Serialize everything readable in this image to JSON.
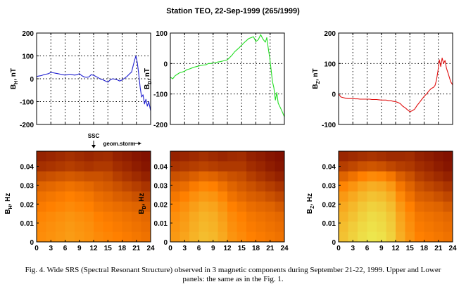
{
  "figure": {
    "title": "Station TEO, 22-Sep-1999 (265/1999)",
    "caption_line1": "Fig. 4. Wide SRS (Spectral Resonant Structure) observed in 3 magnetic components during September 21-22, 1999. Upper and Lower",
    "caption_line2": "panels: the same as in the Fig. 1.",
    "ssc_label": "SSC",
    "storm_label": "geom.storm",
    "ssc_time_hour": 12,
    "storm_start_hour": 14,
    "storm_end_hour": 22
  },
  "colors": {
    "bh_line": "#1f1fd0",
    "bd_line": "#22dd22",
    "bz_line": "#e01010",
    "spec_low": "#7a0a00",
    "spec_mid": "#ff8000",
    "spec_high": "#e8ff60"
  },
  "chart_data": [
    {
      "type": "line",
      "name": "bh-timeseries",
      "ylabel": "B_H, nT",
      "ylabel_main": "B",
      "ylabel_sub": "H",
      "ylabel_unit": ", nT",
      "xlim": [
        0,
        24
      ],
      "ylim": [
        -200,
        200
      ],
      "xticks": [
        0,
        3,
        6,
        9,
        12,
        15,
        18,
        21,
        24
      ],
      "yticks": [
        200,
        100,
        0,
        -100,
        -200
      ],
      "ytick_labels": [
        "200",
        "100",
        "0",
        "-100",
        "-200"
      ],
      "grid": true,
      "x": [
        0,
        0.5,
        1,
        1.5,
        2,
        2.5,
        3,
        3.5,
        4,
        4.5,
        5,
        5.5,
        6,
        6.5,
        7,
        7.5,
        8,
        8.5,
        9,
        9.5,
        10,
        10.5,
        11,
        11.5,
        12,
        12.5,
        13,
        13.5,
        14,
        14.5,
        15,
        15.5,
        16,
        16.5,
        17,
        17.5,
        18,
        18.5,
        19,
        19.5,
        20,
        20.3,
        20.6,
        20.9,
        21.2,
        21.5,
        21.8,
        22.1,
        22.4,
        22.7,
        23,
        23.3,
        23.6,
        24
      ],
      "y": [
        10,
        12,
        14,
        18,
        20,
        22,
        28,
        26,
        24,
        22,
        20,
        18,
        16,
        18,
        20,
        18,
        16,
        18,
        22,
        14,
        8,
        6,
        8,
        18,
        15,
        10,
        4,
        -2,
        -5,
        -10,
        -15,
        -5,
        0,
        -2,
        -5,
        -10,
        -5,
        2,
        10,
        20,
        30,
        55,
        80,
        100,
        70,
        20,
        -40,
        -80,
        -70,
        -110,
        -90,
        -120,
        -100,
        -140
      ]
    },
    {
      "type": "line",
      "name": "bd-timeseries",
      "ylabel": "B_D, nT",
      "ylabel_main": "B",
      "ylabel_sub": "D",
      "ylabel_unit": ", nT",
      "xlim": [
        0,
        24
      ],
      "ylim": [
        -200,
        100
      ],
      "xticks": [
        0,
        3,
        6,
        9,
        12,
        15,
        18,
        21,
        24
      ],
      "yticks": [
        100,
        0,
        -100,
        -200
      ],
      "ytick_labels": [
        "100",
        "0",
        "-100",
        "-200"
      ],
      "grid": true,
      "x": [
        0,
        0.5,
        1,
        1.5,
        2,
        2.5,
        3,
        3.5,
        4,
        4.5,
        5,
        5.5,
        6,
        6.5,
        7,
        7.5,
        8,
        8.5,
        9,
        9.5,
        10,
        10.5,
        11,
        11.5,
        12,
        12.5,
        13,
        13.5,
        14,
        14.5,
        15,
        15.5,
        16,
        16.5,
        17,
        17.5,
        18,
        18.5,
        19,
        19.5,
        20,
        20.3,
        20.6,
        20.9,
        21.2,
        21.5,
        21.8,
        22.1,
        22.4,
        22.7,
        23,
        23.3,
        23.6,
        24
      ],
      "y": [
        -45,
        -50,
        -40,
        -35,
        -30,
        -28,
        -25,
        -20,
        -18,
        -15,
        -12,
        -10,
        -8,
        -6,
        -5,
        -4,
        0,
        0,
        2,
        3,
        5,
        6,
        8,
        10,
        12,
        20,
        28,
        38,
        45,
        52,
        60,
        68,
        75,
        82,
        85,
        88,
        72,
        78,
        95,
        80,
        70,
        85,
        50,
        20,
        -20,
        -60,
        -80,
        -120,
        -95,
        -130,
        -140,
        -150,
        -160,
        -175
      ]
    },
    {
      "type": "line",
      "name": "bz-timeseries",
      "ylabel": "B_Z, nT",
      "ylabel_main": "B",
      "ylabel_sub": "Z",
      "ylabel_unit": ", nT",
      "xlim": [
        0,
        24
      ],
      "ylim": [
        -100,
        200
      ],
      "xticks": [
        0,
        3,
        6,
        9,
        12,
        15,
        18,
        21,
        24
      ],
      "yticks": [
        200,
        100,
        0,
        -100
      ],
      "ytick_labels": [
        "200",
        "100",
        "0",
        "-100"
      ],
      "grid": true,
      "x": [
        0,
        0.5,
        1,
        1.5,
        2,
        2.5,
        3,
        3.5,
        4,
        4.5,
        5,
        5.5,
        6,
        6.5,
        7,
        7.5,
        8,
        8.5,
        9,
        9.5,
        10,
        10.5,
        11,
        11.5,
        12,
        12.5,
        13,
        13.5,
        14,
        14.5,
        15,
        15.5,
        16,
        16.5,
        17,
        17.5,
        18,
        18.5,
        19,
        19.5,
        20,
        20.3,
        20.6,
        20.9,
        21.2,
        21.5,
        21.8,
        22.1,
        22.4,
        22.7,
        23,
        23.3,
        23.6,
        24
      ],
      "y": [
        0,
        -10,
        -12,
        -14,
        -15,
        -15,
        -15,
        -16,
        -16,
        -17,
        -17,
        -17,
        -17,
        -17,
        -18,
        -18,
        -18,
        -19,
        -20,
        -20,
        -20,
        -22,
        -22,
        -24,
        -25,
        -28,
        -32,
        -40,
        -45,
        -52,
        -58,
        -55,
        -50,
        -38,
        -28,
        -18,
        -8,
        0,
        10,
        18,
        22,
        28,
        45,
        75,
        112,
        90,
        118,
        100,
        110,
        85,
        70,
        55,
        40,
        30
      ]
    },
    {
      "type": "heatmap",
      "name": "bh-spectrogram",
      "ylabel": "B_H, Hz",
      "ylabel_main": "B",
      "ylabel_sub": "H",
      "ylabel_unit": ", Hz",
      "xlim": [
        0,
        24
      ],
      "ylim": [
        0,
        0.048
      ],
      "xticks": [
        0,
        3,
        6,
        9,
        12,
        15,
        18,
        21,
        24
      ],
      "xtick_labels": [
        "0",
        "3",
        "6",
        "9",
        "12",
        "15",
        "18",
        "21",
        "24"
      ],
      "yticks": [
        0,
        0.01,
        0.02,
        0.03,
        0.04
      ],
      "ytick_labels": [
        "0",
        "0.01",
        "0.02",
        "0.03",
        "0.04"
      ],
      "intensity": [
        [
          0.9,
          0.88,
          0.86,
          0.84,
          0.86,
          0.88,
          0.86,
          0.85,
          0.9,
          0.92,
          0.95,
          0.97
        ],
        [
          0.84,
          0.82,
          0.8,
          0.78,
          0.8,
          0.82,
          0.8,
          0.8,
          0.85,
          0.88,
          0.92,
          0.95
        ],
        [
          0.72,
          0.7,
          0.68,
          0.66,
          0.68,
          0.7,
          0.7,
          0.72,
          0.78,
          0.82,
          0.86,
          0.9
        ],
        [
          0.62,
          0.6,
          0.58,
          0.56,
          0.58,
          0.6,
          0.64,
          0.66,
          0.7,
          0.74,
          0.78,
          0.82
        ],
        [
          0.56,
          0.54,
          0.52,
          0.5,
          0.52,
          0.54,
          0.58,
          0.6,
          0.64,
          0.66,
          0.7,
          0.74
        ],
        [
          0.52,
          0.5,
          0.48,
          0.46,
          0.48,
          0.5,
          0.54,
          0.56,
          0.58,
          0.6,
          0.62,
          0.66
        ],
        [
          0.48,
          0.46,
          0.44,
          0.42,
          0.44,
          0.46,
          0.5,
          0.52,
          0.54,
          0.56,
          0.58,
          0.6
        ],
        [
          0.46,
          0.44,
          0.42,
          0.4,
          0.42,
          0.44,
          0.48,
          0.5,
          0.52,
          0.54,
          0.56,
          0.58
        ],
        [
          0.45,
          0.43,
          0.41,
          0.39,
          0.41,
          0.43,
          0.46,
          0.48,
          0.5,
          0.52,
          0.54,
          0.56
        ]
      ]
    },
    {
      "type": "heatmap",
      "name": "bd-spectrogram",
      "ylabel": "B_D, Hz",
      "ylabel_main": "B",
      "ylabel_sub": "D",
      "ylabel_unit": ", Hz",
      "xlim": [
        0,
        24
      ],
      "ylim": [
        0,
        0.048
      ],
      "xticks": [
        0,
        3,
        6,
        9,
        12,
        15,
        18,
        21,
        24
      ],
      "xtick_labels": [
        "0",
        "3",
        "6",
        "9",
        "12",
        "15",
        "18",
        "21",
        "24"
      ],
      "yticks": [
        0,
        0.01,
        0.02,
        0.03,
        0.04
      ],
      "ytick_labels": [
        "0",
        "0.01",
        "0.02",
        "0.03",
        "0.04"
      ],
      "intensity": [
        [
          0.9,
          0.88,
          0.86,
          0.84,
          0.86,
          0.88,
          0.86,
          0.85,
          0.9,
          0.92,
          0.95,
          0.97
        ],
        [
          0.82,
          0.8,
          0.78,
          0.76,
          0.78,
          0.8,
          0.8,
          0.8,
          0.85,
          0.88,
          0.92,
          0.95
        ],
        [
          0.7,
          0.68,
          0.64,
          0.6,
          0.62,
          0.66,
          0.7,
          0.72,
          0.78,
          0.82,
          0.86,
          0.9
        ],
        [
          0.6,
          0.58,
          0.52,
          0.48,
          0.5,
          0.56,
          0.62,
          0.66,
          0.7,
          0.74,
          0.78,
          0.82
        ],
        [
          0.54,
          0.5,
          0.44,
          0.4,
          0.42,
          0.48,
          0.56,
          0.6,
          0.64,
          0.66,
          0.7,
          0.74
        ],
        [
          0.48,
          0.44,
          0.38,
          0.34,
          0.36,
          0.42,
          0.5,
          0.54,
          0.58,
          0.6,
          0.62,
          0.66
        ],
        [
          0.44,
          0.4,
          0.34,
          0.3,
          0.32,
          0.38,
          0.46,
          0.5,
          0.54,
          0.56,
          0.58,
          0.6
        ],
        [
          0.42,
          0.38,
          0.32,
          0.28,
          0.3,
          0.36,
          0.44,
          0.48,
          0.52,
          0.54,
          0.56,
          0.58
        ],
        [
          0.4,
          0.36,
          0.3,
          0.26,
          0.28,
          0.34,
          0.42,
          0.46,
          0.5,
          0.52,
          0.54,
          0.56
        ]
      ]
    },
    {
      "type": "heatmap",
      "name": "bz-spectrogram",
      "ylabel": "B_Z, Hz",
      "ylabel_main": "B",
      "ylabel_sub": "Z",
      "ylabel_unit": ", Hz",
      "xlim": [
        0,
        24
      ],
      "ylim": [
        0,
        0.048
      ],
      "xticks": [
        0,
        3,
        6,
        9,
        12,
        15,
        18,
        21,
        24
      ],
      "xtick_labels": [
        "0",
        "3",
        "6",
        "9",
        "12",
        "15",
        "18",
        "21",
        "24"
      ],
      "yticks": [
        0,
        0.01,
        0.02,
        0.03,
        0.04
      ],
      "ytick_labels": [
        "0",
        "0.01",
        "0.02",
        "0.03",
        "0.04"
      ],
      "intensity": [
        [
          0.88,
          0.86,
          0.84,
          0.82,
          0.84,
          0.86,
          0.86,
          0.85,
          0.9,
          0.92,
          0.95,
          0.97
        ],
        [
          0.78,
          0.74,
          0.7,
          0.68,
          0.7,
          0.74,
          0.78,
          0.8,
          0.85,
          0.88,
          0.92,
          0.95
        ],
        [
          0.62,
          0.56,
          0.5,
          0.46,
          0.48,
          0.54,
          0.64,
          0.7,
          0.78,
          0.82,
          0.86,
          0.9
        ],
        [
          0.48,
          0.42,
          0.36,
          0.32,
          0.34,
          0.4,
          0.54,
          0.62,
          0.7,
          0.74,
          0.78,
          0.82
        ],
        [
          0.4,
          0.34,
          0.28,
          0.24,
          0.26,
          0.32,
          0.46,
          0.56,
          0.64,
          0.66,
          0.7,
          0.74
        ],
        [
          0.34,
          0.28,
          0.22,
          0.18,
          0.2,
          0.26,
          0.4,
          0.5,
          0.58,
          0.6,
          0.62,
          0.66
        ],
        [
          0.3,
          0.24,
          0.18,
          0.14,
          0.16,
          0.22,
          0.36,
          0.46,
          0.54,
          0.56,
          0.58,
          0.6
        ],
        [
          0.26,
          0.2,
          0.15,
          0.12,
          0.14,
          0.2,
          0.34,
          0.44,
          0.52,
          0.54,
          0.56,
          0.58
        ],
        [
          0.24,
          0.18,
          0.13,
          0.1,
          0.12,
          0.18,
          0.32,
          0.42,
          0.5,
          0.52,
          0.54,
          0.56
        ]
      ]
    }
  ]
}
